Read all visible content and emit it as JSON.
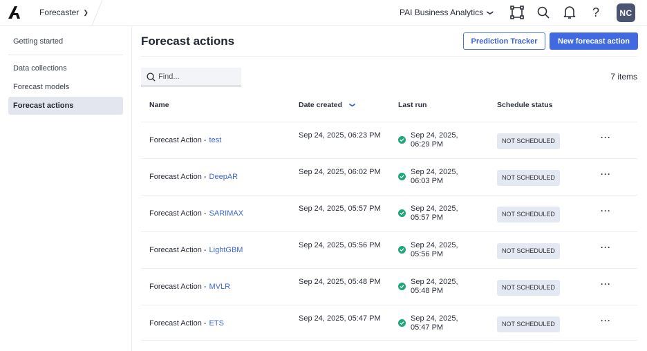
{
  "topbar": {
    "app_name": "Forecaster",
    "org_name": "PAI Business Analytics",
    "avatar_initials": "NC"
  },
  "sidebar": {
    "items": [
      {
        "label": "Getting started"
      },
      {
        "label": "Data collections"
      },
      {
        "label": "Forecast models"
      },
      {
        "label": "Forecast actions",
        "active": true
      }
    ]
  },
  "main": {
    "title": "Forecast actions",
    "prediction_tracker": "Prediction Tracker",
    "new_action": "New forecast action",
    "search_placeholder": "Find...",
    "count": "7 items",
    "columns": [
      "Name",
      "Date created",
      "Last run",
      "Schedule status"
    ],
    "rows": [
      {
        "prefix": "Forecast Action -",
        "link": "test",
        "created": "Sep 24, 2025, 06:23 PM",
        "last_run": "Sep 24, 2025, 06:29 PM",
        "status": "NOT SCHEDULED"
      },
      {
        "prefix": "Forecast Action -",
        "link": "DeepAR",
        "created": "Sep 24, 2025, 06:02 PM",
        "last_run": "Sep 24, 2025, 06:03 PM",
        "status": "NOT SCHEDULED"
      },
      {
        "prefix": "Forecast Action -",
        "link": "SARIMAX",
        "created": "Sep 24, 2025, 05:57 PM",
        "last_run": "Sep 24, 2025, 05:57 PM",
        "status": "NOT SCHEDULED"
      },
      {
        "prefix": "Forecast Action -",
        "link": "LightGBM",
        "created": "Sep 24, 2025, 05:56 PM",
        "last_run": "Sep 24, 2025, 05:56 PM",
        "status": "NOT SCHEDULED"
      },
      {
        "prefix": "Forecast Action -",
        "link": "MVLR",
        "created": "Sep 24, 2025, 05:48 PM",
        "last_run": "Sep 24, 2025, 05:48 PM",
        "status": "NOT SCHEDULED"
      },
      {
        "prefix": "Forecast Action -",
        "link": "ETS",
        "created": "Sep 24, 2025, 05:47 PM",
        "last_run": "Sep 24, 2025, 05:47 PM",
        "status": "NOT SCHEDULED"
      }
    ]
  },
  "colors": {
    "accent": "#4169e1",
    "success": "#1fa67a",
    "badge_bg": "#e4e8f2"
  }
}
